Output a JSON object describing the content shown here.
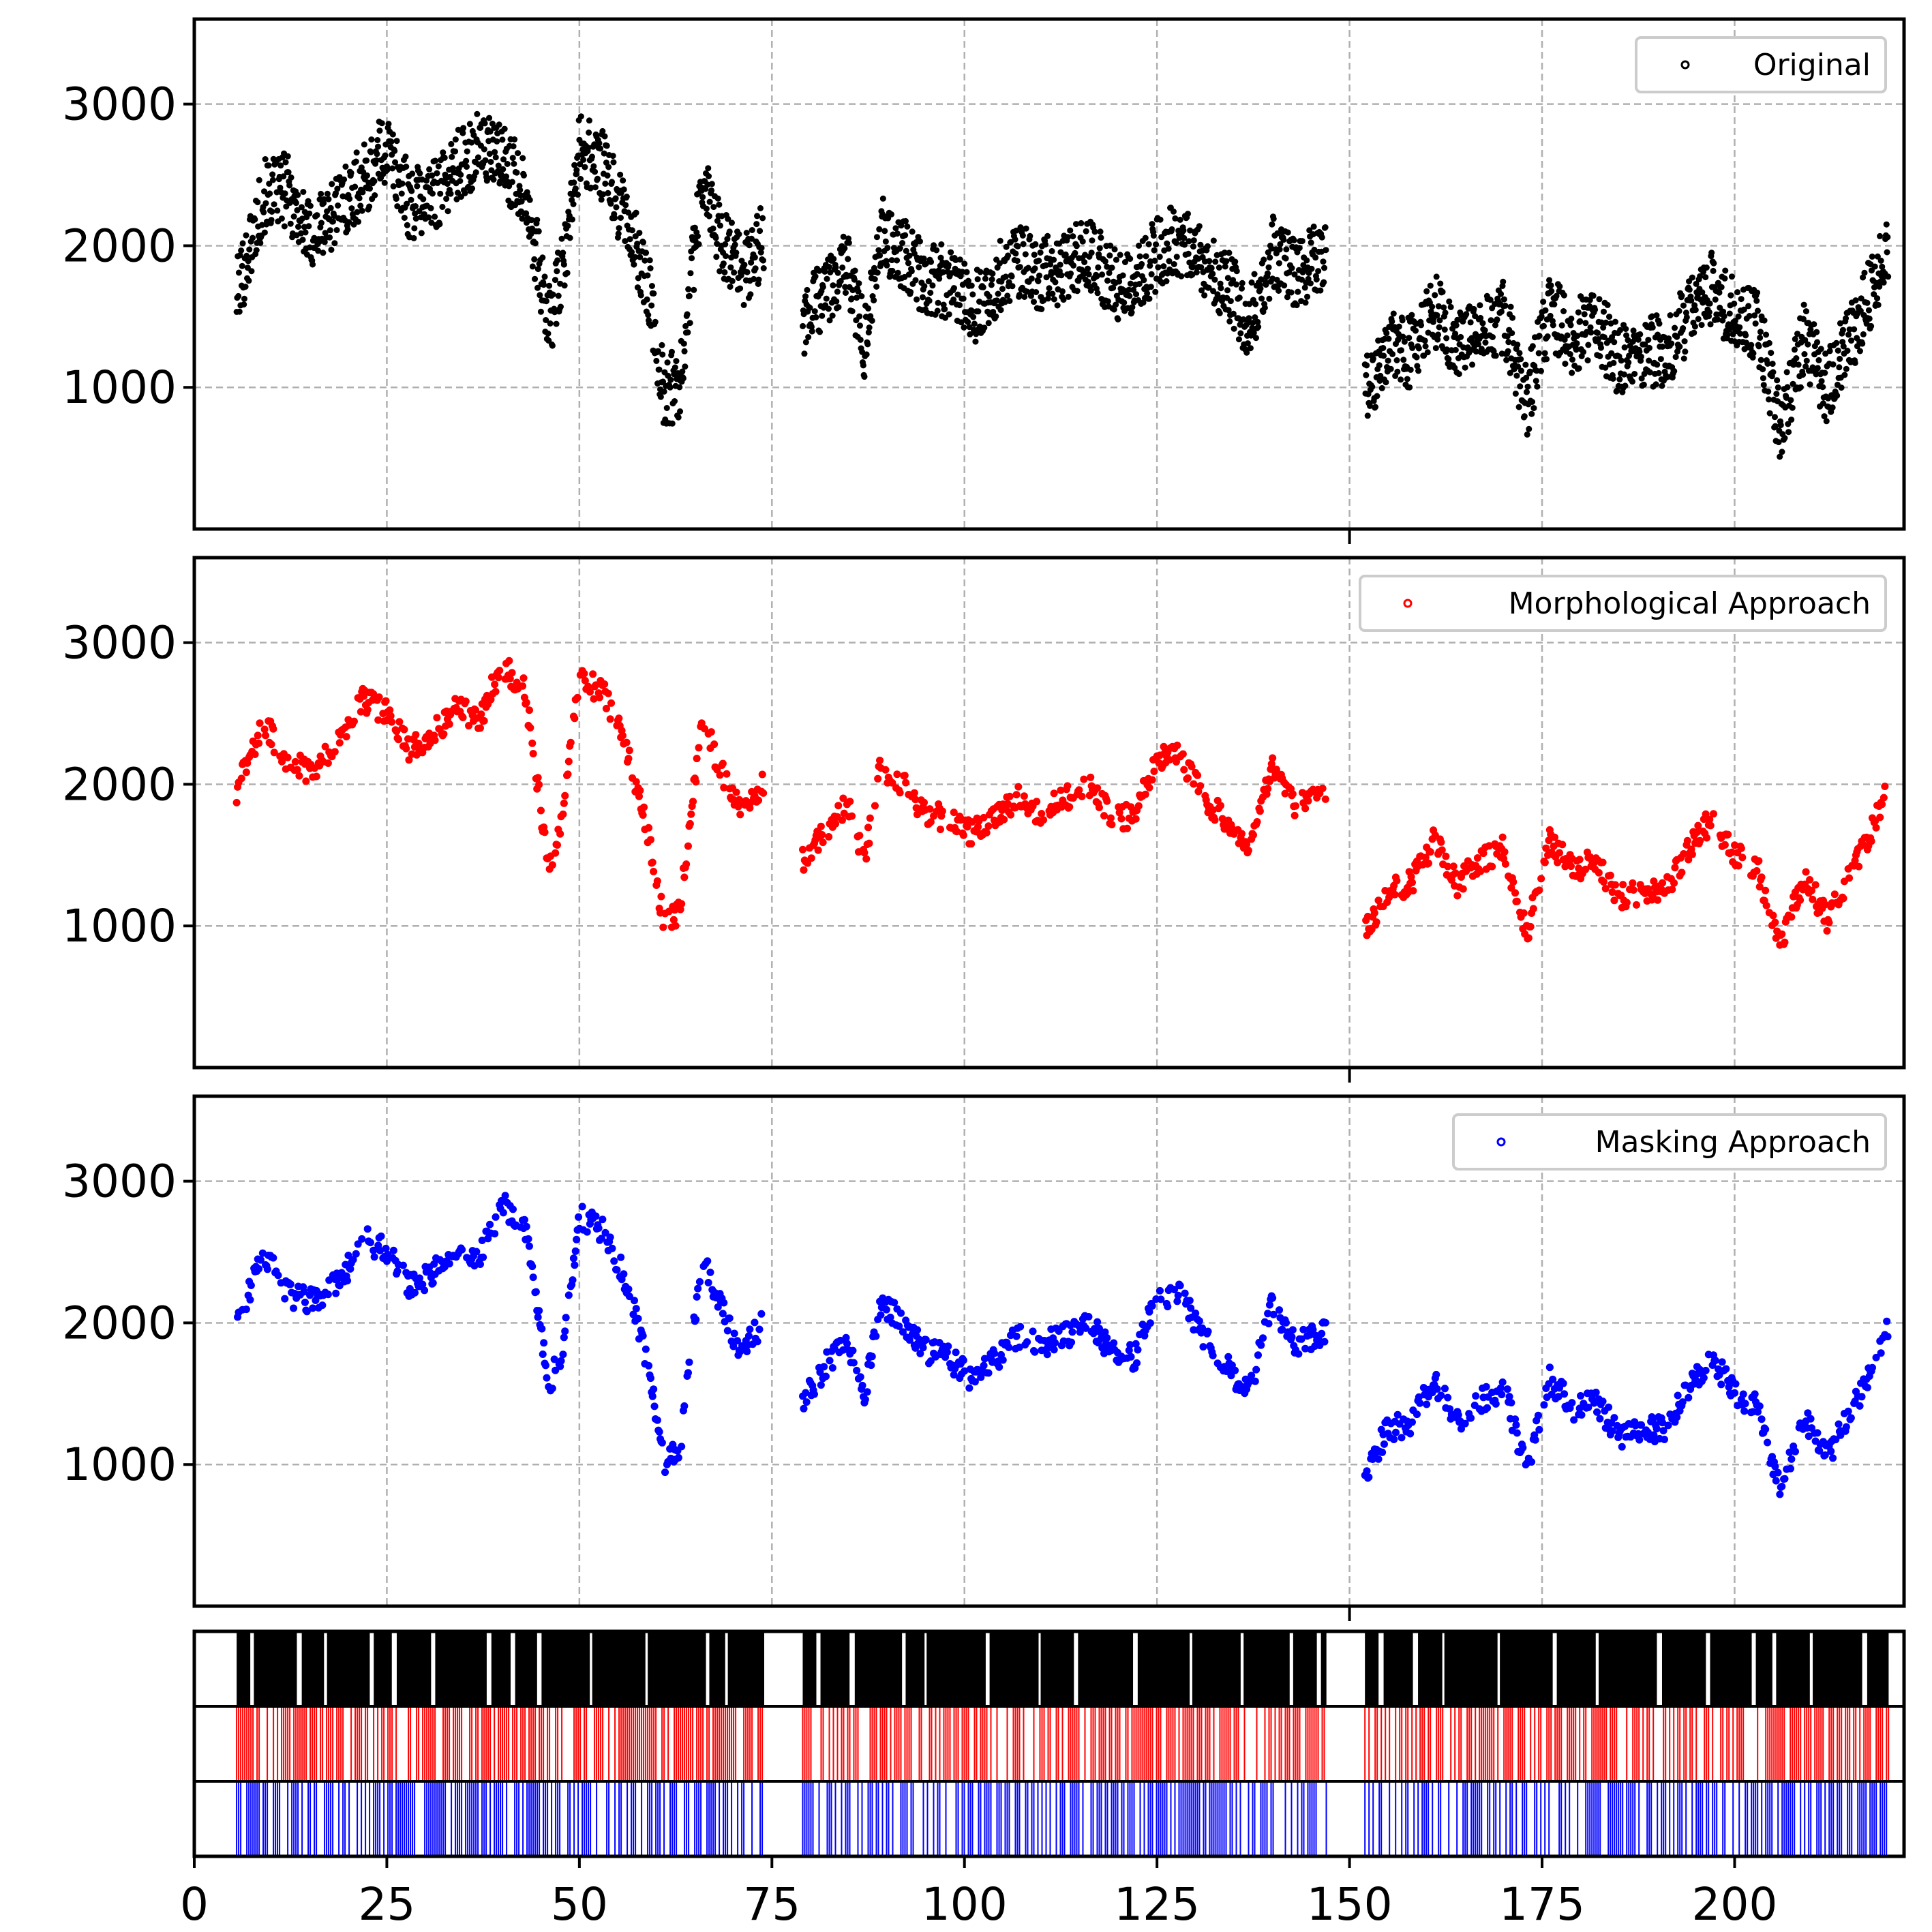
{
  "chart_data": [
    {
      "type": "scatter",
      "panel": "original",
      "color": "#000000",
      "legend": {
        "label": "Original",
        "position": "top-right"
      },
      "xlim": [
        0,
        222
      ],
      "ylim": [
        0,
        3600
      ],
      "yticks": [
        1000,
        2000,
        3000
      ],
      "grid": true,
      "segments": [
        {
          "x": [
            5.5,
            9,
            12,
            15,
            19,
            22,
            25,
            28,
            31,
            34,
            37,
            40,
            43,
            46,
            48,
            50,
            53,
            56,
            59,
            61,
            63,
            66,
            68,
            71,
            74
          ],
          "y": [
            1650,
            2350,
            2400,
            2050,
            2300,
            2450,
            2700,
            2300,
            2350,
            2550,
            2700,
            2600,
            2400,
            1450,
            1850,
            2700,
            2550,
            2200,
            1700,
            950,
            1050,
            2450,
            2100,
            1800,
            2050
          ]
        },
        {
          "x": [
            79,
            82,
            85,
            87,
            89,
            92,
            95,
            98,
            101,
            104,
            107,
            110,
            113,
            116,
            119,
            122,
            125,
            128,
            131,
            134,
            137,
            140,
            143,
            147
          ],
          "y": [
            1450,
            1700,
            1850,
            1300,
            2100,
            1950,
            1750,
            1750,
            1550,
            1750,
            1900,
            1800,
            1850,
            1950,
            1750,
            1700,
            1950,
            2050,
            1850,
            1750,
            1450,
            1950,
            1800,
            1950
          ]
        },
        {
          "x": [
            152,
            155,
            158,
            161,
            164,
            167,
            170,
            173,
            176,
            179,
            182,
            185,
            188,
            191,
            194,
            197,
            200,
            203,
            206,
            209,
            212,
            215,
            218,
            220
          ],
          "y": [
            950,
            1300,
            1250,
            1550,
            1300,
            1450,
            1500,
            900,
            1550,
            1350,
            1450,
            1200,
            1250,
            1250,
            1500,
            1700,
            1500,
            1450,
            700,
            1350,
            1000,
            1350,
            1700,
            2050
          ]
        }
      ]
    },
    {
      "type": "scatter",
      "panel": "morphological",
      "color": "#ff0000",
      "legend": {
        "label": "Morphological Approach",
        "position": "top-right"
      },
      "xlim": [
        0,
        222
      ],
      "ylim": [
        0,
        3600
      ],
      "yticks": [
        1000,
        2000,
        3000
      ],
      "grid": true,
      "segments": [
        {
          "x": [
            5.5,
            9,
            12,
            15,
            19,
            22,
            25,
            28,
            31,
            34,
            37,
            40,
            43,
            46,
            48,
            50,
            53,
            56,
            59,
            61,
            63,
            66,
            68,
            71,
            74
          ],
          "y": [
            1950,
            2450,
            2150,
            2100,
            2300,
            2600,
            2500,
            2250,
            2350,
            2550,
            2450,
            2850,
            2650,
            1400,
            1850,
            2750,
            2650,
            2300,
            1650,
            1000,
            1100,
            2450,
            2150,
            1800,
            2000
          ]
        },
        {
          "x": [
            79,
            82,
            85,
            87,
            89,
            92,
            95,
            98,
            101,
            104,
            107,
            110,
            113,
            116,
            119,
            122,
            125,
            128,
            131,
            134,
            137,
            140,
            143,
            147
          ],
          "y": [
            1450,
            1700,
            1850,
            1450,
            2150,
            2000,
            1800,
            1750,
            1650,
            1750,
            1900,
            1800,
            1900,
            2000,
            1800,
            1750,
            2200,
            2200,
            1900,
            1750,
            1550,
            2150,
            1850,
            1950
          ]
        },
        {
          "x": [
            152,
            155,
            158,
            161,
            164,
            167,
            170,
            173,
            176,
            179,
            182,
            185,
            188,
            191,
            194,
            197,
            200,
            203,
            206,
            209,
            212,
            215,
            218,
            220
          ],
          "y": [
            950,
            1250,
            1300,
            1600,
            1300,
            1450,
            1550,
            950,
            1600,
            1400,
            1450,
            1200,
            1250,
            1250,
            1550,
            1750,
            1500,
            1400,
            850,
            1350,
            1050,
            1350,
            1700,
            2000
          ]
        }
      ]
    },
    {
      "type": "scatter",
      "panel": "masking",
      "color": "#0000ff",
      "legend": {
        "label": "Masking Approach",
        "position": "top-right"
      },
      "xlim": [
        0,
        222
      ],
      "ylim": [
        0,
        3600
      ],
      "yticks": [
        1000,
        2000,
        3000
      ],
      "grid": true,
      "segments": [
        {
          "x": [
            5.5,
            9,
            12,
            15,
            19,
            22,
            25,
            28,
            31,
            34,
            37,
            40,
            43,
            46,
            48,
            50,
            53,
            56,
            59,
            61,
            63,
            66,
            68,
            71,
            74
          ],
          "y": [
            1950,
            2500,
            2200,
            2150,
            2300,
            2600,
            2500,
            2250,
            2350,
            2550,
            2450,
            2850,
            2650,
            1550,
            1850,
            2750,
            2650,
            2300,
            1700,
            1000,
            1100,
            2500,
            2150,
            1800,
            2000
          ]
        },
        {
          "x": [
            79,
            82,
            85,
            87,
            89,
            92,
            95,
            98,
            101,
            104,
            107,
            110,
            113,
            116,
            119,
            122,
            125,
            128,
            131,
            134,
            137,
            140,
            143,
            147
          ],
          "y": [
            1450,
            1700,
            1850,
            1450,
            2150,
            2000,
            1800,
            1750,
            1600,
            1750,
            1900,
            1850,
            1900,
            2000,
            1800,
            1750,
            2200,
            2200,
            1900,
            1700,
            1500,
            2150,
            1850,
            1950
          ]
        },
        {
          "x": [
            152,
            155,
            158,
            161,
            164,
            167,
            170,
            173,
            176,
            179,
            182,
            185,
            188,
            191,
            194,
            197,
            200,
            203,
            206,
            209,
            212,
            215,
            218,
            220
          ],
          "y": [
            950,
            1250,
            1300,
            1600,
            1300,
            1450,
            1550,
            950,
            1600,
            1400,
            1450,
            1200,
            1250,
            1250,
            1550,
            1750,
            1500,
            1400,
            800,
            1350,
            1050,
            1350,
            1700,
            2000
          ]
        }
      ]
    },
    {
      "type": "raster",
      "panel": "event-raster",
      "xlim": [
        0,
        222
      ],
      "xticks": [
        0,
        25,
        50,
        75,
        100,
        125,
        150,
        175,
        200
      ],
      "xtick_labels": [
        "0",
        "25",
        "50",
        "75",
        "100",
        "125",
        "150",
        "175",
        "200"
      ],
      "rows": [
        {
          "color": "#000000",
          "intervals": [
            [
              5.5,
              74
            ],
            [
              79,
              147
            ],
            [
              152,
              220
            ]
          ]
        },
        {
          "color": "#ff0000",
          "intervals": [
            [
              5.5,
              74
            ],
            [
              79,
              147
            ],
            [
              152,
              220
            ]
          ]
        },
        {
          "color": "#0000ff",
          "intervals": [
            [
              5.5,
              74
            ],
            [
              79,
              147
            ],
            [
              152,
              220
            ]
          ]
        }
      ]
    }
  ]
}
